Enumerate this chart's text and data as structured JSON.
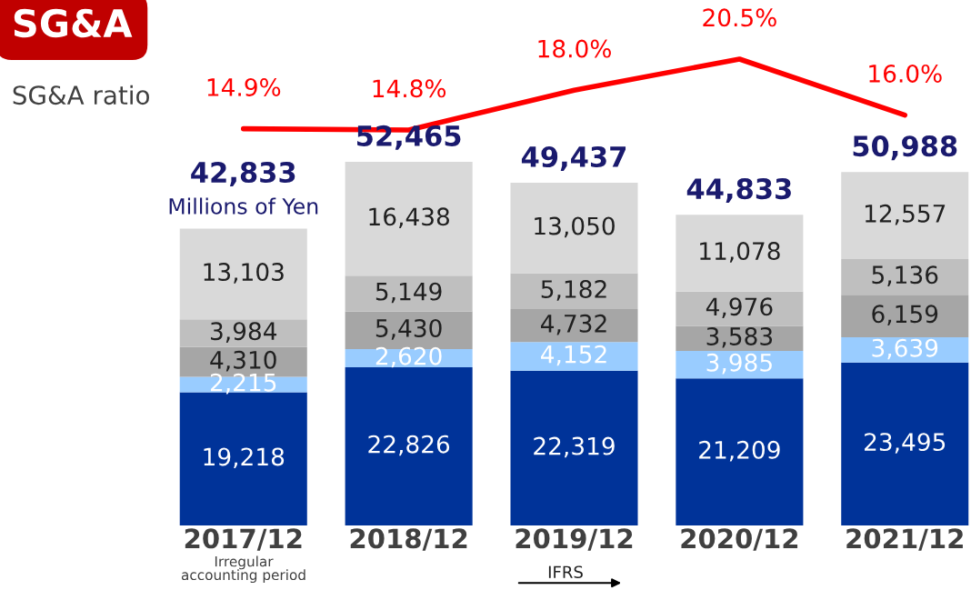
{
  "chart_data": [
    {
      "type": "line",
      "title": "SG&A",
      "grid": false,
      "tick_labels": false,
      "categories": [
        "2017/12",
        "2018/12",
        "2019/12",
        "2020/12",
        "2021/12"
      ],
      "series": [
        {
          "color": "#ff0000",
          "values": [
            14.9,
            14.8,
            18.0,
            20.5,
            16.0
          ],
          "value_labels": [
            "14.9%",
            "14.8%",
            "18.0%",
            "20.5%",
            "16.0%"
          ]
        }
      ],
      "annotations": [
        "SG&A ratio"
      ]
    },
    {
      "type": "bar",
      "stacked": true,
      "grid": false,
      "tick_labels": "x",
      "categories": [
        "2017/12",
        "2018/12",
        "2019/12",
        "2020/12",
        "2021/12"
      ],
      "series": [
        {
          "color": "#003399",
          "values": [
            19218,
            22826,
            22319,
            21209,
            23495
          ],
          "value_labels": [
            "19,218",
            "22,826",
            "22,319",
            "21,209",
            "23,495"
          ]
        },
        {
          "color": "#99ccff",
          "values": [
            2215,
            2620,
            4152,
            3985,
            3639
          ],
          "value_labels": [
            "2,215",
            "2,620",
            "4,152",
            "3,985",
            "3,639"
          ]
        },
        {
          "color": "#a6a6a6",
          "values": [
            4310,
            5430,
            4732,
            3583,
            6159
          ],
          "value_labels": [
            "4,310",
            "5,430",
            "4,732",
            "3,583",
            "6,159"
          ]
        },
        {
          "color": "#bfbfbf",
          "values": [
            3984,
            5149,
            5182,
            4976,
            5136
          ],
          "value_labels": [
            "3,984",
            "5,149",
            "5,182",
            "4,976",
            "5,136"
          ]
        },
        {
          "color": "#d9d9d9",
          "values": [
            13103,
            16438,
            13050,
            11078,
            12557
          ],
          "value_labels": [
            "13,103",
            "16,438",
            "13,050",
            "11,078",
            "12,557"
          ]
        }
      ],
      "totals": [
        "42,833",
        "52,465",
        "49,437",
        "44,833",
        "50,988"
      ],
      "annotations": [
        "Millions of Yen",
        "Irregular\naccounting period",
        "IFRS"
      ]
    }
  ]
}
